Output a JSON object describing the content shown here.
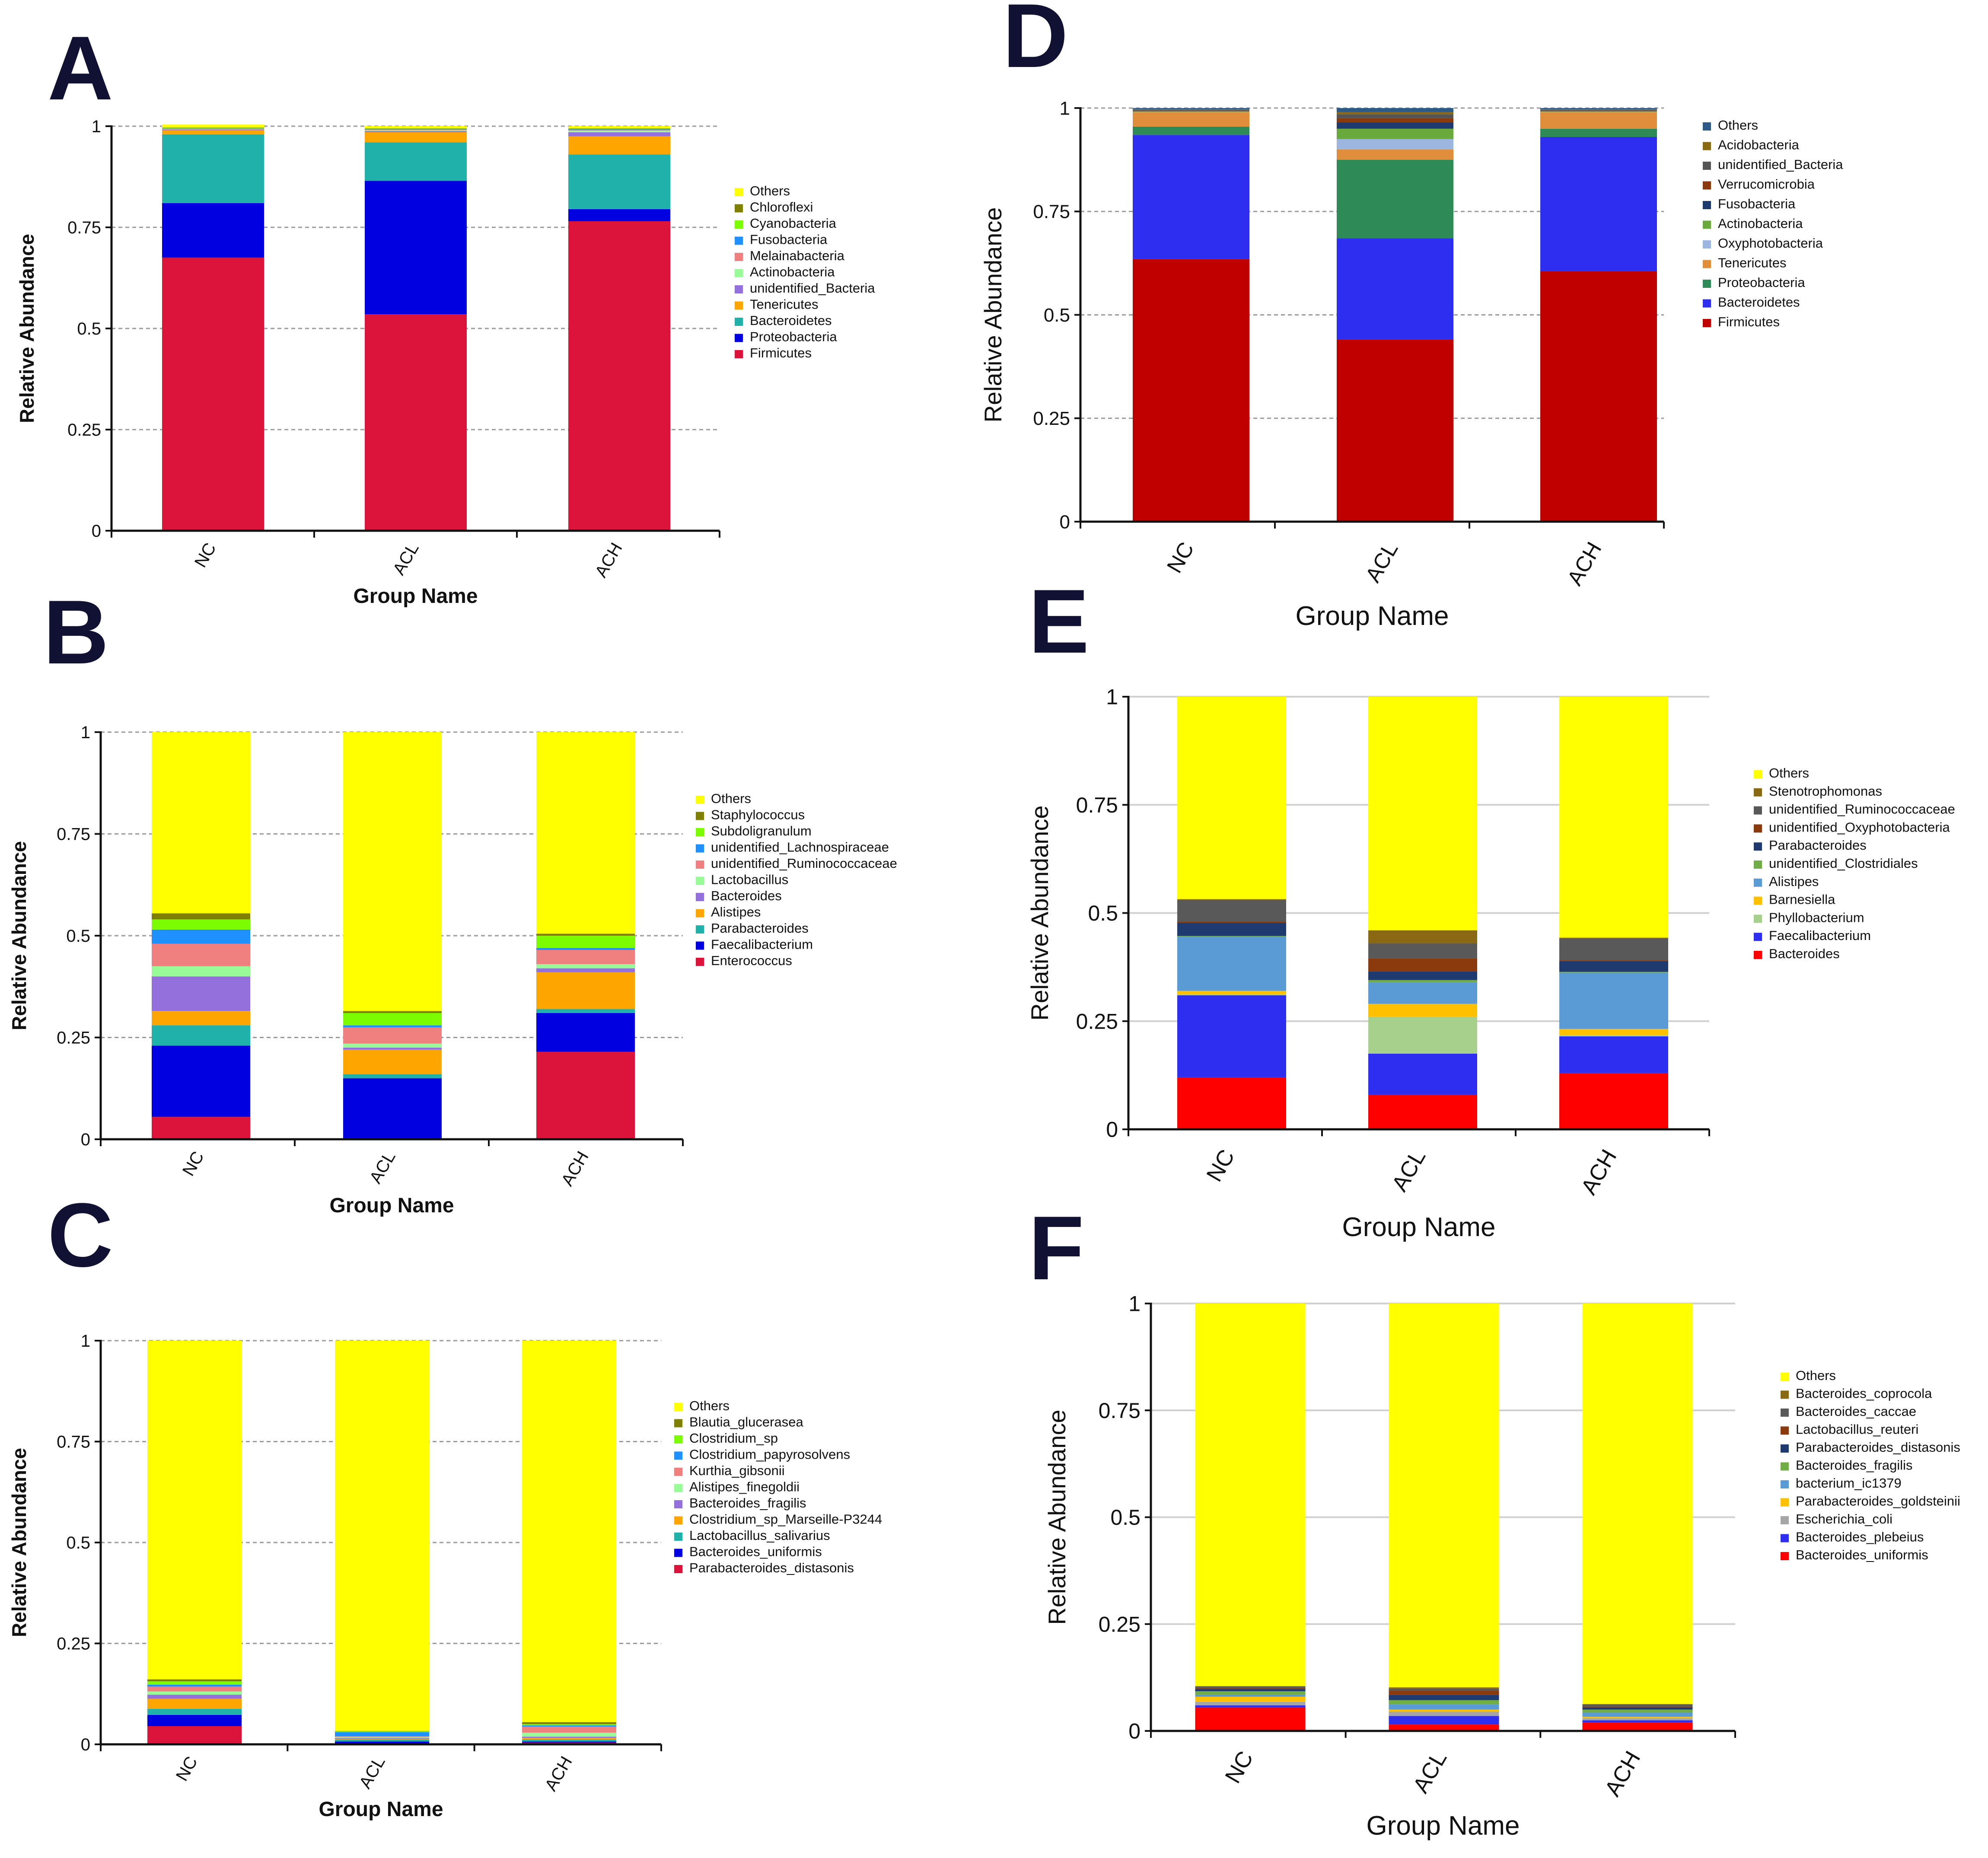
{
  "panels": [
    {
      "letter": "A",
      "chart_data": {
        "type": "bar",
        "stacked": true,
        "categories": [
          "NC",
          "ACL",
          "ACH"
        ],
        "xlabel": "Group Name",
        "ylabel": "Relative Abundance",
        "ylim": [
          0,
          1
        ],
        "yticks": [
          "0",
          "0.25",
          "0.5",
          "0.75",
          "1"
        ],
        "legend_position": "right",
        "series": [
          {
            "name": "Firmicutes",
            "color": "#DC143C",
            "values": [
              0.675,
              0.535,
              0.765
            ]
          },
          {
            "name": "Proteobacteria",
            "color": "#0000E0",
            "values": [
              0.135,
              0.33,
              0.03
            ]
          },
          {
            "name": "Bacteroidetes",
            "color": "#20B2AA",
            "values": [
              0.17,
              0.095,
              0.135
            ]
          },
          {
            "name": "Tenericutes",
            "color": "#FFA500",
            "values": [
              0.01,
              0.025,
              0.045
            ]
          },
          {
            "name": "unidentified_Bacteria",
            "color": "#9370DB",
            "values": [
              0.002,
              0.003,
              0.01
            ]
          },
          {
            "name": "Actinobacteria",
            "color": "#98FB98",
            "values": [
              0.001,
              0.002,
              0.004
            ]
          },
          {
            "name": "Melainabacteria",
            "color": "#F08080",
            "values": [
              0.001,
              0.002,
              0.002
            ]
          },
          {
            "name": "Fusobacteria",
            "color": "#1E90FF",
            "values": [
              0.001,
              0.001,
              0.002
            ]
          },
          {
            "name": "Cyanobacteria",
            "color": "#7CFC00",
            "values": [
              0.001,
              0.001,
              0.001
            ]
          },
          {
            "name": "Chloroflexi",
            "color": "#808000",
            "values": [
              0.001,
              0.001,
              0.001
            ]
          },
          {
            "name": "Others",
            "color": "#FFFF00",
            "values": [
              0.007,
              0.005,
              0.005
            ]
          }
        ]
      }
    },
    {
      "letter": "B",
      "chart_data": {
        "type": "bar",
        "stacked": true,
        "categories": [
          "NC",
          "ACL",
          "ACH"
        ],
        "xlabel": "Group Name",
        "ylabel": "Relative Abundance",
        "ylim": [
          0,
          1
        ],
        "yticks": [
          "0",
          "0.25",
          "0.5",
          "0.75",
          "1"
        ],
        "legend_position": "right",
        "series": [
          {
            "name": "Enterococcus",
            "color": "#DC143C",
            "values": [
              0.055,
              0.0,
              0.215
            ]
          },
          {
            "name": "Faecalibacterium",
            "color": "#0000E0",
            "values": [
              0.175,
              0.15,
              0.095
            ]
          },
          {
            "name": "Parabacteroides",
            "color": "#20B2AA",
            "values": [
              0.05,
              0.01,
              0.01
            ]
          },
          {
            "name": "Alistipes",
            "color": "#FFA500",
            "values": [
              0.035,
              0.06,
              0.09
            ]
          },
          {
            "name": "Bacteroides",
            "color": "#9370DB",
            "values": [
              0.085,
              0.005,
              0.01
            ]
          },
          {
            "name": "Lactobacillus",
            "color": "#98FB98",
            "values": [
              0.025,
              0.01,
              0.01
            ]
          },
          {
            "name": "unidentified_Ruminococcaceae",
            "color": "#F08080",
            "values": [
              0.055,
              0.04,
              0.035
            ]
          },
          {
            "name": "unidentified_Lachnospiraceae",
            "color": "#1E90FF",
            "values": [
              0.035,
              0.005,
              0.005
            ]
          },
          {
            "name": "Subdoligranulum",
            "color": "#7CFC00",
            "values": [
              0.025,
              0.03,
              0.03
            ]
          },
          {
            "name": "Staphylococcus",
            "color": "#808000",
            "values": [
              0.015,
              0.005,
              0.005
            ]
          },
          {
            "name": "Others",
            "color": "#FFFF00",
            "values": [
              0.445,
              0.685,
              0.495
            ]
          }
        ]
      }
    },
    {
      "letter": "C",
      "chart_data": {
        "type": "bar",
        "stacked": true,
        "categories": [
          "NC",
          "ACL",
          "ACH"
        ],
        "xlabel": "Group Name",
        "ylabel": "Relative Abundance",
        "ylim": [
          0,
          1
        ],
        "yticks": [
          "0",
          "0.25",
          "0.5",
          "0.75",
          "1"
        ],
        "legend_position": "right",
        "series": [
          {
            "name": "Parabacteroides_distasonis",
            "color": "#DC143C",
            "values": [
              0.045,
              0.002,
              0.004
            ]
          },
          {
            "name": "Bacteroides_uniformis",
            "color": "#0000E0",
            "values": [
              0.028,
              0.005,
              0.003
            ]
          },
          {
            "name": "Lactobacillus_salivarius",
            "color": "#20B2AA",
            "values": [
              0.015,
              0.005,
              0.005
            ]
          },
          {
            "name": "Clostridium_sp_Marseille-P3244",
            "color": "#FFA500",
            "values": [
              0.025,
              0.002,
              0.004
            ]
          },
          {
            "name": "Bacteroides_fragilis",
            "color": "#9370DB",
            "values": [
              0.01,
              0.002,
              0.003
            ]
          },
          {
            "name": "Alistipes_finegoldii",
            "color": "#98FB98",
            "values": [
              0.008,
              0.002,
              0.01
            ]
          },
          {
            "name": "Kurthia_gibsonii",
            "color": "#F08080",
            "values": [
              0.012,
              0.002,
              0.015
            ]
          },
          {
            "name": "Clostridium_papyrosolvens",
            "color": "#1E90FF",
            "values": [
              0.005,
              0.01,
              0.003
            ]
          },
          {
            "name": "Clostridium_sp",
            "color": "#7CFC00",
            "values": [
              0.008,
              0.002,
              0.003
            ]
          },
          {
            "name": "Blautia_glucerasea",
            "color": "#808000",
            "values": [
              0.005,
              0.001,
              0.005
            ]
          },
          {
            "name": "Others",
            "color": "#FFFF00",
            "values": [
              0.839,
              0.967,
              0.945
            ]
          }
        ]
      }
    },
    {
      "letter": "D",
      "chart_data": {
        "type": "bar",
        "stacked": true,
        "categories": [
          "NC",
          "ACL",
          "ACH"
        ],
        "xlabel": "Group Name",
        "ylabel": "Relative Abundance",
        "ylim": [
          0,
          1
        ],
        "yticks": [
          "0",
          "0.25",
          "0.5",
          "0.75",
          "1"
        ],
        "legend_position": "right",
        "series": [
          {
            "name": "Firmicutes",
            "color": "#C00000",
            "values": [
              0.635,
              0.44,
              0.605
            ]
          },
          {
            "name": "Bacteroidetes",
            "color": "#2E2EF0",
            "values": [
              0.3,
              0.245,
              0.325
            ]
          },
          {
            "name": "Proteobacteria",
            "color": "#2E8B57",
            "values": [
              0.02,
              0.19,
              0.02
            ]
          },
          {
            "name": "Tenericutes",
            "color": "#E08E3C",
            "values": [
              0.035,
              0.025,
              0.04
            ]
          },
          {
            "name": "Oxyphotobacteria",
            "color": "#9DB6E0",
            "values": [
              0.001,
              0.025,
              0.001
            ]
          },
          {
            "name": "Actinobacteria",
            "color": "#6AAA3C",
            "values": [
              0.001,
              0.025,
              0.001
            ]
          },
          {
            "name": "Fusobacteria",
            "color": "#1F3A6E",
            "values": [
              0.001,
              0.015,
              0.001
            ]
          },
          {
            "name": "Verrucomicrobia",
            "color": "#8B3A0E",
            "values": [
              0.001,
              0.01,
              0.001
            ]
          },
          {
            "name": "unidentified_Bacteria",
            "color": "#555555",
            "values": [
              0.002,
              0.01,
              0.002
            ]
          },
          {
            "name": "Acidobacteria",
            "color": "#8B6914",
            "values": [
              0.001,
              0.005,
              0.001
            ]
          },
          {
            "name": "Others",
            "color": "#2E5A88",
            "values": [
              0.003,
              0.01,
              0.003
            ]
          }
        ]
      }
    },
    {
      "letter": "E",
      "chart_data": {
        "type": "bar",
        "stacked": true,
        "categories": [
          "NC",
          "ACL",
          "ACH"
        ],
        "xlabel": "Group Name",
        "ylabel": "Relative Abundance",
        "ylim": [
          0,
          1
        ],
        "yticks": [
          "0",
          "0.25",
          "0.5",
          "0.75",
          "1"
        ],
        "legend_position": "right",
        "series": [
          {
            "name": "Bacteroides",
            "color": "#FF0000",
            "values": [
              0.12,
              0.08,
              0.13
            ]
          },
          {
            "name": "Faecalibacterium",
            "color": "#2E2EF0",
            "values": [
              0.19,
              0.095,
              0.085
            ]
          },
          {
            "name": "Phyllobacterium",
            "color": "#A8D08D",
            "values": [
              0.002,
              0.085,
              0.002
            ]
          },
          {
            "name": "Barnesiella",
            "color": "#FFC000",
            "values": [
              0.008,
              0.03,
              0.015
            ]
          },
          {
            "name": "Alistipes",
            "color": "#5B9BD5",
            "values": [
              0.125,
              0.05,
              0.13
            ]
          },
          {
            "name": "unidentified_Clostridiales",
            "color": "#70AD47",
            "values": [
              0.002,
              0.005,
              0.002
            ]
          },
          {
            "name": "Parabacteroides",
            "color": "#1F3A6E",
            "values": [
              0.03,
              0.02,
              0.025
            ]
          },
          {
            "name": "unidentified_Oxyphotobacteria",
            "color": "#8B3A0E",
            "values": [
              0.003,
              0.03,
              0.002
            ]
          },
          {
            "name": "unidentified_Ruminococcaceae",
            "color": "#595959",
            "values": [
              0.05,
              0.035,
              0.05
            ]
          },
          {
            "name": "Stenotrophomonas",
            "color": "#8B6914",
            "values": [
              0.002,
              0.03,
              0.002
            ]
          },
          {
            "name": "Others",
            "color": "#FFFF00",
            "values": [
              0.468,
              0.54,
              0.557
            ]
          }
        ]
      }
    },
    {
      "letter": "F",
      "chart_data": {
        "type": "bar",
        "stacked": true,
        "categories": [
          "NC",
          "ACL",
          "ACH"
        ],
        "xlabel": "Group Name",
        "ylabel": "Relative Abundance",
        "ylim": [
          0,
          1
        ],
        "yticks": [
          "0",
          "0.25",
          "0.5",
          "0.75",
          "1"
        ],
        "legend_position": "right",
        "series": [
          {
            "name": "Bacteroides_uniformis",
            "color": "#FF0000",
            "values": [
              0.055,
              0.015,
              0.02
            ]
          },
          {
            "name": "Bacteroides_plebeius",
            "color": "#2E2EF0",
            "values": [
              0.005,
              0.02,
              0.005
            ]
          },
          {
            "name": "Escherichia_coli",
            "color": "#A6A6A6",
            "values": [
              0.008,
              0.01,
              0.005
            ]
          },
          {
            "name": "Parabacteroides_goldsteinii",
            "color": "#FFC000",
            "values": [
              0.012,
              0.005,
              0.003
            ]
          },
          {
            "name": "bacterium_ic1379",
            "color": "#5B9BD5",
            "values": [
              0.005,
              0.012,
              0.01
            ]
          },
          {
            "name": "Bacteroides_fragilis",
            "color": "#70AD47",
            "values": [
              0.008,
              0.01,
              0.007
            ]
          },
          {
            "name": "Parabacteroides_distasonis",
            "color": "#1F3A6E",
            "values": [
              0.005,
              0.012,
              0.005
            ]
          },
          {
            "name": "Lactobacillus_reuteri",
            "color": "#8B3A0E",
            "values": [
              0.003,
              0.01,
              0.002
            ]
          },
          {
            "name": "Bacteroides_caccae",
            "color": "#595959",
            "values": [
              0.003,
              0.005,
              0.005
            ]
          },
          {
            "name": "Bacteroides_coprocola",
            "color": "#8B6914",
            "values": [
              0.001,
              0.003,
              0.001
            ]
          },
          {
            "name": "Others",
            "color": "#FFFF00",
            "values": [
              0.895,
              0.898,
              0.937
            ]
          }
        ]
      }
    }
  ]
}
